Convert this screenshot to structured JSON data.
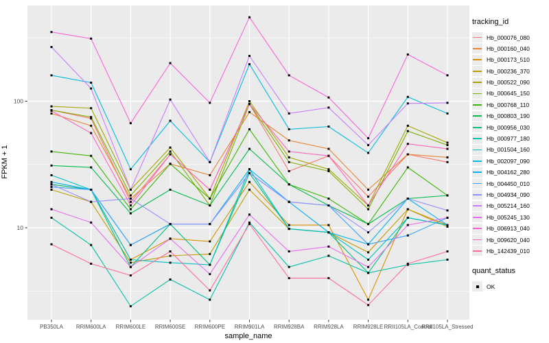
{
  "axes": {
    "y_title": "FPKM + 1",
    "x_title": "sample_name"
  },
  "legend": {
    "tracking_title": "tracking_id",
    "quant_title": "quant_status",
    "quant_items": [
      {
        "label": "OK",
        "marker": "black-square"
      }
    ]
  },
  "chart_data": {
    "type": "line",
    "title": "",
    "xlabel": "sample_name",
    "ylabel": "FPKM + 1",
    "y_scale": "log10",
    "y_ticks": [
      100,
      10
    ],
    "y_minor_ticks": [
      316.23,
      31.623,
      3.1623
    ],
    "ylim": [
      1.9,
      570
    ],
    "grid": "white major and minor on gray panel",
    "legend_position": "right",
    "panel_background": "#EBEBEB",
    "point_marker": "black square (quant_status OK)",
    "categories": [
      "PB350LA",
      "RRIM600LA",
      "RRIM600LE",
      "RRIM600SE",
      "RRIM600PE",
      "RRIM901LA",
      "RRIM928BA",
      "RRIM928LA",
      "RRIM928LE",
      "RRII105LA_Control",
      "RRII105LA_Stressed"
    ],
    "series": [
      {
        "name": "Hb_000076_080",
        "color": "#F8766D",
        "values": [
          85,
          73,
          16,
          38,
          20,
          95,
          28,
          37,
          17.6,
          38,
          33
        ]
      },
      {
        "name": "Hb_000160_040",
        "color": "#EA8331",
        "values": [
          80,
          64,
          17,
          32,
          26,
          82,
          49,
          42,
          20,
          38,
          36
        ]
      },
      {
        "name": "Hb_000173_510",
        "color": "#D89000",
        "values": [
          22,
          20,
          5.6,
          8.2,
          7.8,
          23,
          10.5,
          10.5,
          2.7,
          14,
          10.5
        ]
      },
      {
        "name": "Hb_000236_370",
        "color": "#C09B00",
        "values": [
          20,
          16,
          5.3,
          6.0,
          6.2,
          20,
          9.8,
          9.2,
          6.4,
          14,
          10.2
        ]
      },
      {
        "name": "Hb_000522_090",
        "color": "#A3A500",
        "values": [
          91,
          88,
          20,
          43,
          17,
          100,
          36,
          29,
          15,
          64,
          47
        ]
      },
      {
        "name": "Hb_000645_150",
        "color": "#7CAE00",
        "values": [
          85,
          75,
          18,
          40,
          15,
          95,
          33,
          28,
          14,
          58,
          45
        ]
      },
      {
        "name": "Hb_000768_110",
        "color": "#39B600",
        "values": [
          40,
          37,
          14,
          32,
          17,
          60,
          22,
          17,
          10.7,
          30,
          18
        ]
      },
      {
        "name": "Hb_000803_190",
        "color": "#00BB4E",
        "values": [
          31,
          30,
          13,
          20,
          15,
          42,
          22,
          15,
          10.7,
          17,
          18
        ]
      },
      {
        "name": "Hb_000956_030",
        "color": "#00BF7D",
        "values": [
          22,
          20,
          4.9,
          10.7,
          5.1,
          27,
          9.8,
          9.2,
          4.4,
          12,
          10.5
        ]
      },
      {
        "name": "Hb_000977_180",
        "color": "#00C1A3",
        "values": [
          12,
          7.3,
          2.4,
          3.9,
          2.7,
          11,
          4.9,
          6.0,
          4.4,
          5.1,
          5.6
        ]
      },
      {
        "name": "Hb_001504_160",
        "color": "#00BFC4",
        "values": [
          26,
          20,
          5.6,
          5.3,
          5.1,
          29,
          9.8,
          9.2,
          5.6,
          12,
          10.5
        ]
      },
      {
        "name": "Hb_002097_090",
        "color": "#00BAE0",
        "values": [
          160,
          140,
          29,
          70,
          33,
          196,
          60,
          63,
          39,
          108,
          80
        ]
      },
      {
        "name": "Hb_004162_280",
        "color": "#00B0F6",
        "values": [
          23,
          20,
          7.3,
          10.7,
          10.7,
          29,
          16,
          9.2,
          7.4,
          17,
          10.5
        ]
      },
      {
        "name": "Hb_004450_010",
        "color": "#35A2FF",
        "values": [
          21,
          20,
          7.3,
          10.7,
          10.7,
          27,
          16,
          15,
          7.4,
          8.7,
          12
        ]
      },
      {
        "name": "Hb_004934_090",
        "color": "#9590FF",
        "values": [
          22,
          16,
          17,
          10.7,
          10.7,
          27,
          16,
          15,
          9.2,
          17,
          13.7
        ]
      },
      {
        "name": "Hb_005214_160",
        "color": "#C77CFF",
        "values": [
          268,
          126,
          20,
          103,
          33,
          228,
          80,
          89,
          45,
          96,
          97
        ]
      },
      {
        "name": "Hb_005245_130",
        "color": "#E76BF3",
        "values": [
          14,
          11,
          4.9,
          8.2,
          4.3,
          12.7,
          6.5,
          7.1,
          4.9,
          10.5,
          12
        ]
      },
      {
        "name": "Hb_006913_040",
        "color": "#FA62DB",
        "values": [
          352,
          312,
          67,
          200,
          97,
          460,
          160,
          107,
          51,
          234,
          160
        ]
      },
      {
        "name": "Hb_009620_040",
        "color": "#FF62BC",
        "values": [
          84,
          56,
          15,
          38,
          20,
          95,
          40,
          37,
          15,
          46,
          42
        ]
      },
      {
        "name": "Hb_142439_010",
        "color": "#FF6A98",
        "values": [
          7.4,
          5.2,
          4.2,
          6.5,
          3.2,
          10.7,
          4.0,
          4.0,
          2.45,
          5.2,
          6.5
        ]
      }
    ]
  }
}
